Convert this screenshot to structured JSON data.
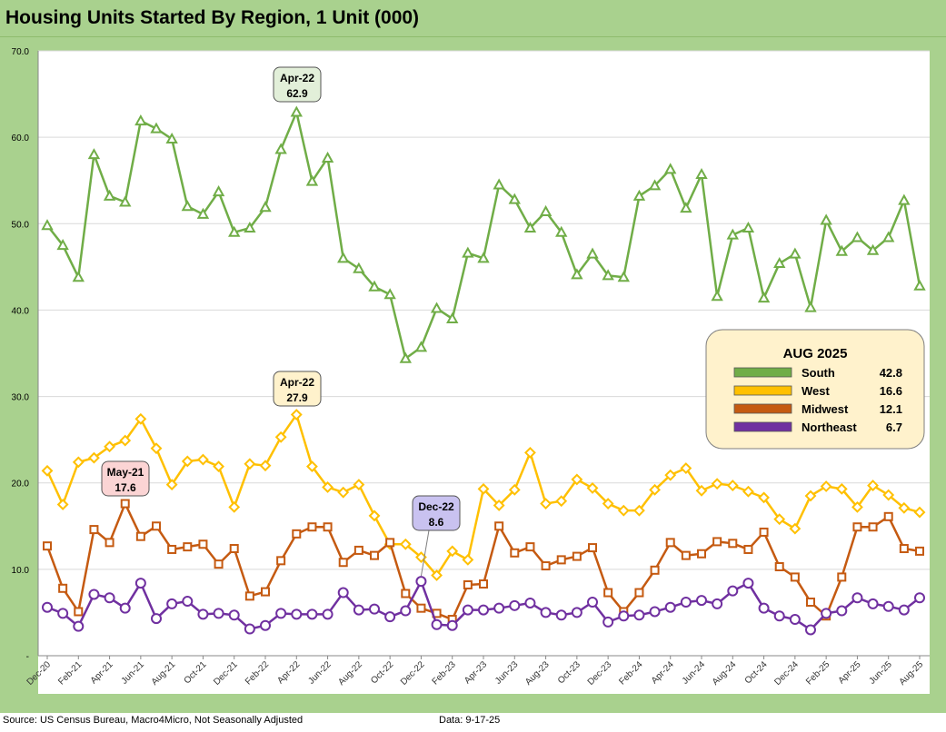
{
  "header": {
    "title": "Housing Units Started By Region, 1 Unit (000)"
  },
  "footer": {
    "source": "Source: US Census Bureau, Macro4Micro, Not Seasonally Adjusted",
    "date": "Data: 9-17-25"
  },
  "chart_data": {
    "type": "line",
    "title": "Housing Units Started By Region, 1 Unit (000)",
    "xlabel": "",
    "ylabel": "",
    "ylim": [
      0,
      70
    ],
    "yticks": [
      {
        "value": 0,
        "label": "-"
      },
      {
        "value": 10,
        "label": "10.0"
      },
      {
        "value": 20,
        "label": "20.0"
      },
      {
        "value": 30,
        "label": "30.0"
      },
      {
        "value": 40,
        "label": "40.0"
      },
      {
        "value": 50,
        "label": "50.0"
      },
      {
        "value": 60,
        "label": "60.0"
      },
      {
        "value": 70,
        "label": "70.0"
      }
    ],
    "grid": true,
    "categories": [
      "Dec-20",
      "Jan-21",
      "Feb-21",
      "Mar-21",
      "Apr-21",
      "May-21",
      "Jun-21",
      "Jul-21",
      "Aug-21",
      "Sep-21",
      "Oct-21",
      "Nov-21",
      "Dec-21",
      "Jan-22",
      "Feb-22",
      "Mar-22",
      "Apr-22",
      "May-22",
      "Jun-22",
      "Jul-22",
      "Aug-22",
      "Sep-22",
      "Oct-22",
      "Nov-22",
      "Dec-22",
      "Jan-23",
      "Feb-23",
      "Mar-23",
      "Apr-23",
      "May-23",
      "Jun-23",
      "Jul-23",
      "Aug-23",
      "Sep-23",
      "Oct-23",
      "Nov-23",
      "Dec-23",
      "Jan-24",
      "Feb-24",
      "Mar-24",
      "Apr-24",
      "May-24",
      "Jun-24",
      "Jul-24",
      "Aug-24",
      "Sep-24",
      "Oct-24",
      "Nov-24",
      "Dec-24",
      "Jan-25",
      "Feb-25",
      "Mar-25",
      "Apr-25",
      "May-25",
      "Jun-25",
      "Jul-25",
      "Aug-25"
    ],
    "x_tick_labels": [
      "Dec-20",
      "Feb-21",
      "Apr-21",
      "Jun-21",
      "Aug-21",
      "Oct-21",
      "Dec-21",
      "Feb-22",
      "Apr-22",
      "Jun-22",
      "Aug-22",
      "Oct-22",
      "Dec-22",
      "Feb-23",
      "Apr-23",
      "Jun-23",
      "Aug-23",
      "Oct-23",
      "Dec-23",
      "Feb-24",
      "Apr-24",
      "Jun-24",
      "Aug-24",
      "Oct-24",
      "Dec-24",
      "Feb-25",
      "Apr-25",
      "Jun-25",
      "Aug-25"
    ],
    "series": [
      {
        "name": "South",
        "color": "#70ad47",
        "marker": "triangle",
        "values": [
          49.8,
          47.5,
          43.8,
          58.0,
          53.2,
          52.5,
          61.9,
          61.0,
          59.8,
          52.0,
          51.1,
          53.7,
          49.0,
          49.5,
          51.9,
          58.6,
          62.9,
          54.9,
          57.6,
          46.0,
          44.8,
          42.7,
          41.8,
          34.4,
          35.7,
          40.2,
          39.0,
          46.6,
          46.0,
          54.5,
          52.8,
          49.5,
          51.4,
          49.0,
          44.1,
          46.5,
          44.0,
          43.8,
          53.2,
          54.4,
          56.3,
          51.8,
          55.7,
          41.6,
          48.7,
          49.5,
          41.4,
          45.4,
          46.5,
          40.3,
          50.4,
          46.8,
          48.4,
          46.9,
          48.4,
          52.7,
          42.8
        ]
      },
      {
        "name": "West",
        "color": "#ffc000",
        "marker": "diamond",
        "values": [
          21.4,
          17.5,
          22.4,
          22.9,
          24.2,
          24.9,
          27.4,
          24.0,
          19.8,
          22.5,
          22.7,
          21.9,
          17.2,
          22.2,
          22.0,
          25.3,
          27.9,
          21.9,
          19.5,
          18.9,
          19.8,
          16.2,
          12.9,
          12.9,
          11.4,
          9.3,
          12.1,
          11.1,
          19.3,
          17.4,
          19.2,
          23.5,
          17.6,
          17.9,
          20.4,
          19.4,
          17.6,
          16.8,
          16.8,
          19.2,
          20.9,
          21.7,
          19.1,
          19.9,
          19.7,
          19.0,
          18.3,
          15.8,
          14.7,
          18.5,
          19.6,
          19.3,
          17.2,
          19.7,
          18.6,
          17.1,
          16.6
        ]
      },
      {
        "name": "Midwest",
        "color": "#c55a11",
        "marker": "square",
        "values": [
          12.7,
          7.8,
          5.1,
          14.6,
          13.1,
          17.6,
          13.8,
          15.0,
          12.3,
          12.6,
          12.9,
          10.6,
          12.4,
          6.9,
          7.4,
          11.0,
          14.1,
          14.9,
          14.9,
          10.8,
          12.2,
          11.6,
          13.1,
          7.2,
          5.5,
          4.9,
          4.2,
          8.2,
          8.3,
          15.0,
          11.9,
          12.6,
          10.4,
          11.1,
          11.5,
          12.5,
          7.3,
          5.1,
          7.3,
          9.9,
          13.1,
          11.6,
          11.8,
          13.2,
          13.0,
          12.3,
          14.3,
          10.3,
          9.1,
          6.2,
          4.6,
          9.1,
          14.9,
          14.9,
          16.1,
          12.4,
          12.1
        ]
      },
      {
        "name": "Northeast",
        "color": "#7030a0",
        "marker": "circle",
        "values": [
          5.6,
          4.9,
          3.4,
          7.1,
          6.7,
          5.5,
          8.4,
          4.3,
          6.0,
          6.3,
          4.8,
          4.9,
          4.7,
          3.1,
          3.5,
          4.9,
          4.8,
          4.8,
          4.8,
          7.3,
          5.3,
          5.4,
          4.5,
          5.2,
          8.6,
          3.6,
          3.5,
          5.3,
          5.3,
          5.5,
          5.8,
          6.1,
          5.0,
          4.7,
          5.0,
          6.2,
          3.9,
          4.6,
          4.7,
          5.1,
          5.6,
          6.2,
          6.4,
          6.0,
          7.5,
          8.4,
          5.5,
          4.6,
          4.2,
          3.0,
          4.9,
          5.2,
          6.7,
          6.0,
          5.7,
          5.3,
          6.7
        ]
      }
    ],
    "annotations": [
      {
        "label": "Apr-22",
        "value": "62.9",
        "series": "South",
        "index": 16,
        "fill": "#e2efd9"
      },
      {
        "label": "Apr-22",
        "value": "27.9",
        "series": "West",
        "index": 16,
        "fill": "#fff2cc"
      },
      {
        "label": "May-21",
        "value": "17.6",
        "series": "Midwest",
        "index": 5,
        "fill": "#fbd4d4"
      },
      {
        "label": "Dec-22",
        "value": "8.6",
        "series": "Northeast",
        "index": 24,
        "fill": "#c9c2f0"
      }
    ],
    "legend": {
      "title": "AUG 2025",
      "placement": "right",
      "entries": [
        {
          "name": "South",
          "value": "42.8",
          "color": "#70ad47"
        },
        {
          "name": "West",
          "value": "16.6",
          "color": "#ffc000"
        },
        {
          "name": "Midwest",
          "value": "12.1",
          "color": "#c55a11"
        },
        {
          "name": "Northeast",
          "value": "6.7",
          "color": "#7030a0"
        }
      ]
    }
  }
}
